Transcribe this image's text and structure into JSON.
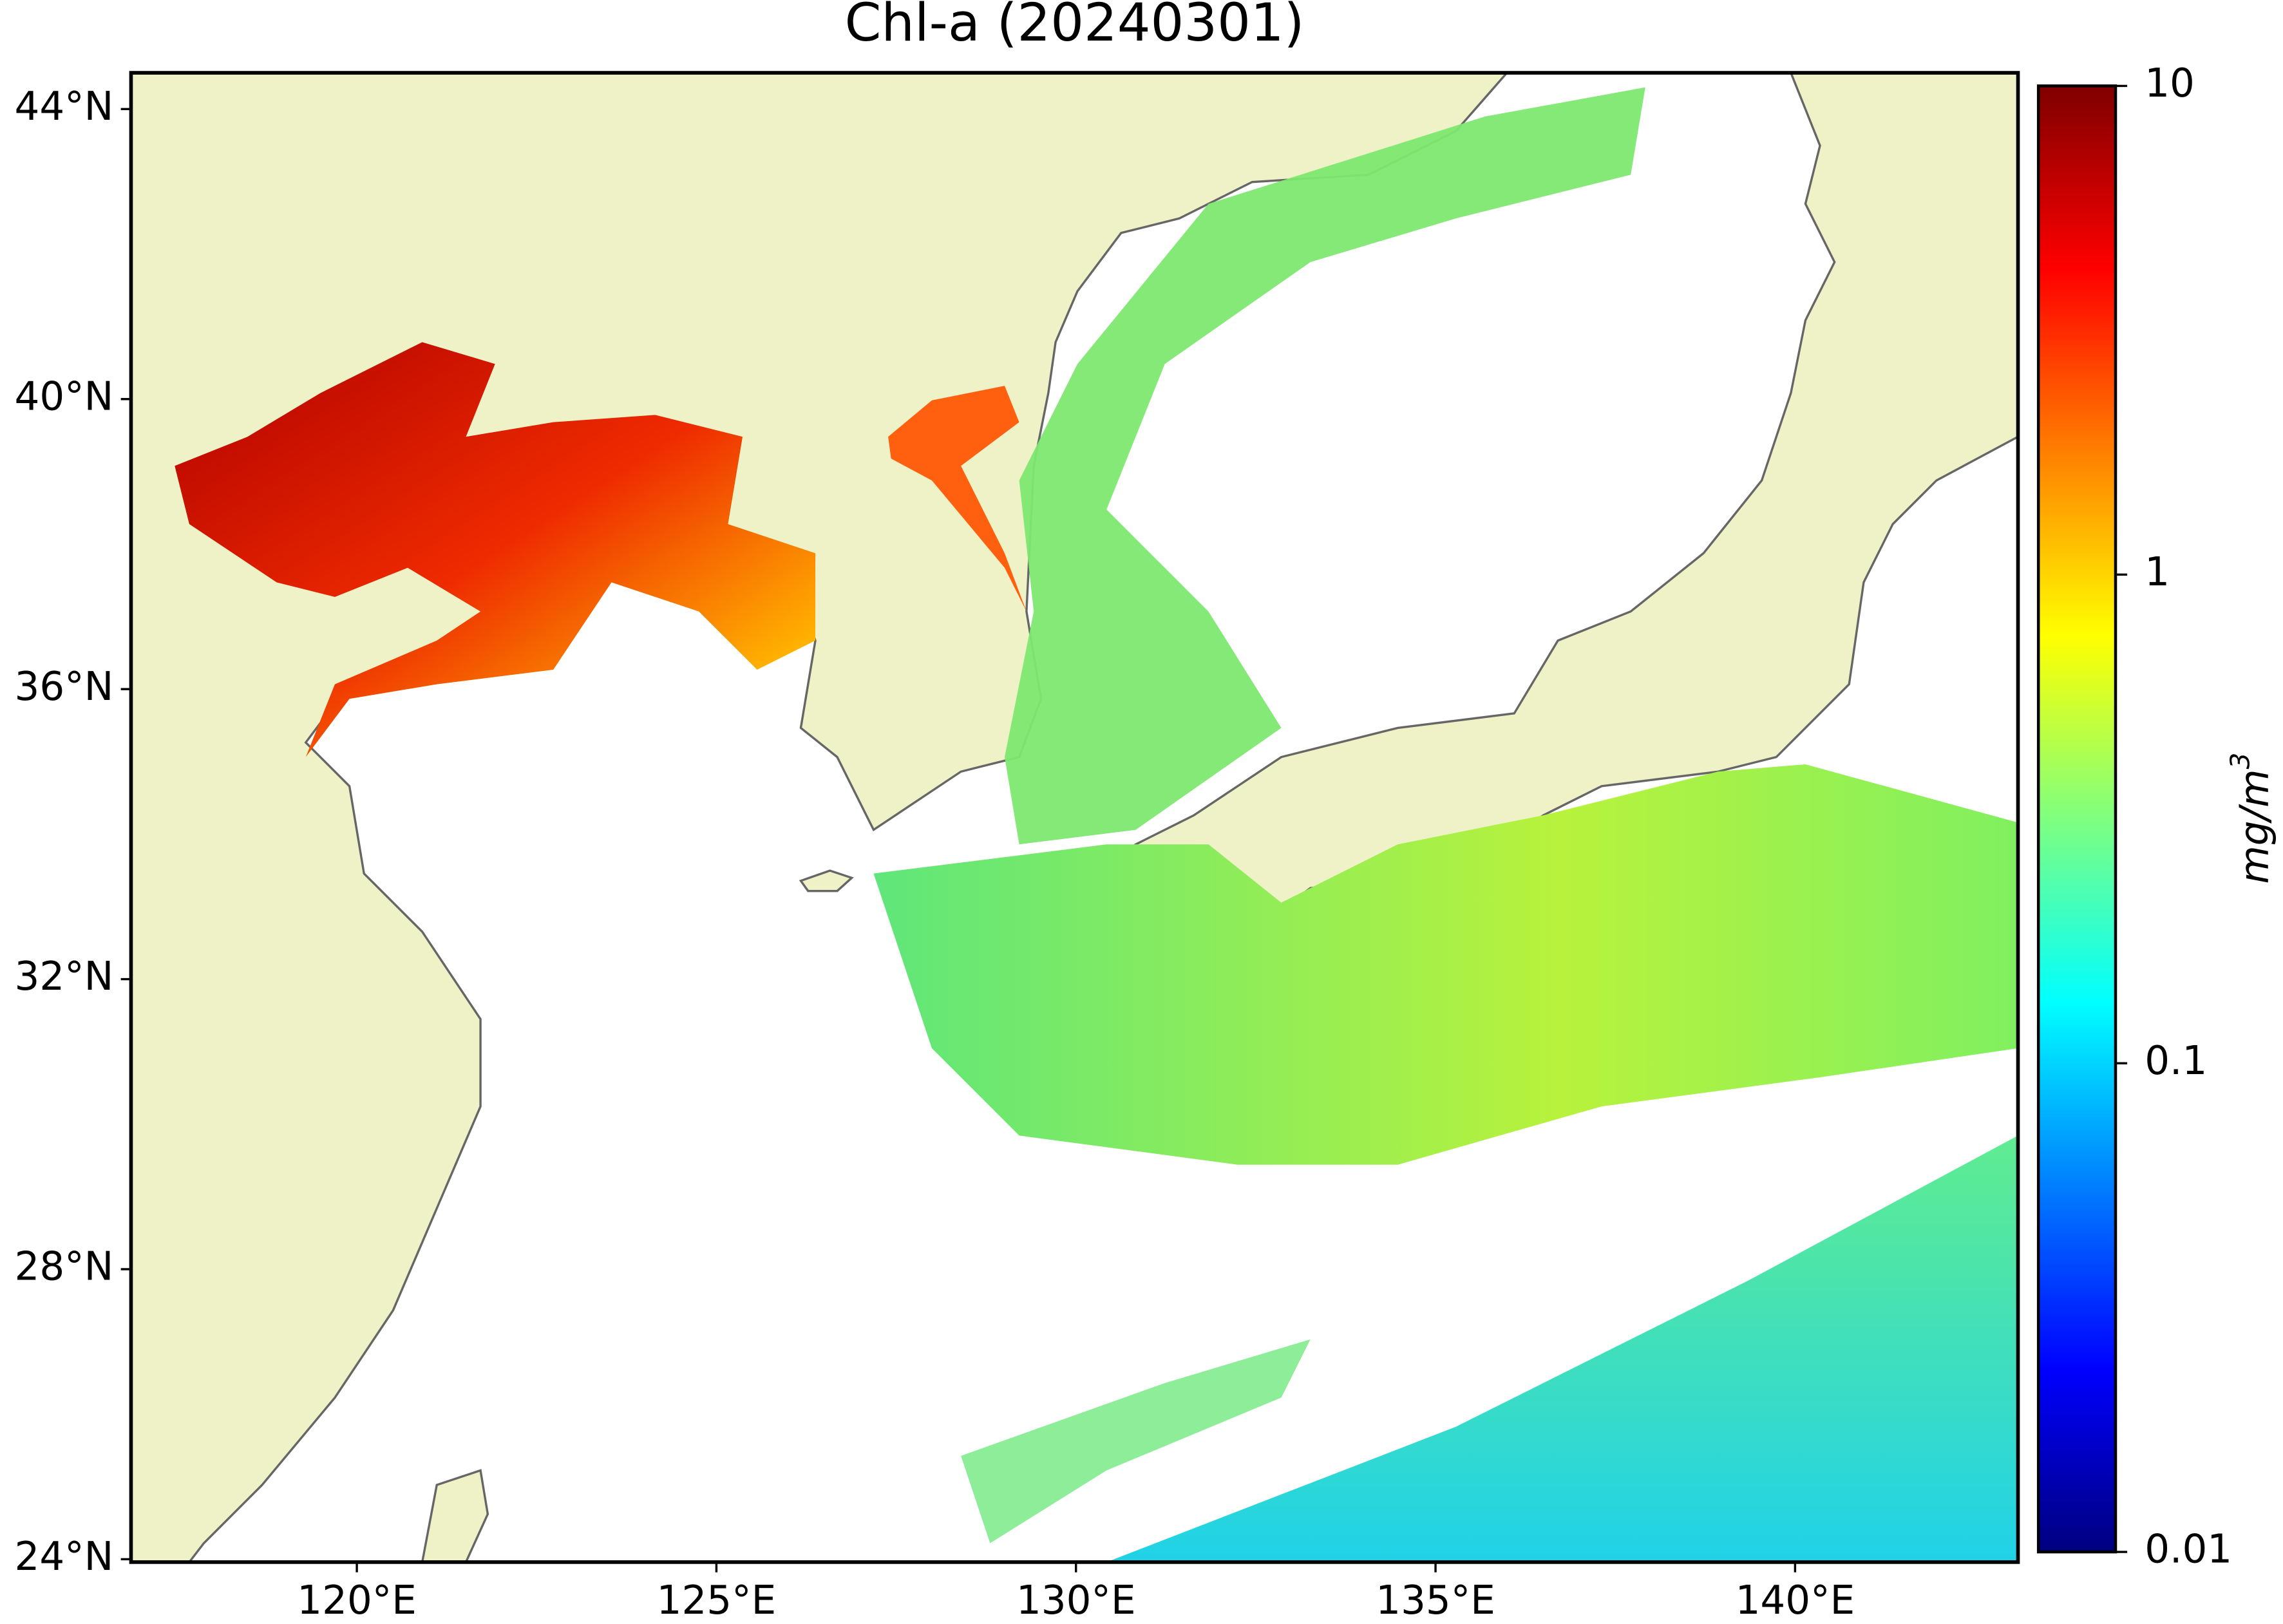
{
  "chart_data": {
    "type": "map",
    "title": "Chl-a (20240301)",
    "xlim": [
      116.86,
      143.1
    ],
    "ylim": [
      23.96,
      44.5
    ],
    "xticks": [
      {
        "value": 120,
        "label": "120°E"
      },
      {
        "value": 125,
        "label": "125°E"
      },
      {
        "value": 130,
        "label": "130°E"
      },
      {
        "value": 135,
        "label": "135°E"
      },
      {
        "value": 140,
        "label": "140°E"
      }
    ],
    "yticks": [
      {
        "value": 24,
        "label": "24°N"
      },
      {
        "value": 28,
        "label": "28°N"
      },
      {
        "value": 32,
        "label": "32°N"
      },
      {
        "value": 36,
        "label": "36°N"
      },
      {
        "value": 40,
        "label": "40°N"
      },
      {
        "value": 44,
        "label": "44°N"
      }
    ],
    "colorbar": {
      "label": "mg/m",
      "label_superscript": "3",
      "scale": "log",
      "lim": [
        0.01,
        10
      ],
      "ticks": [
        0.01,
        0.1,
        1,
        10
      ],
      "colormap": "jet"
    },
    "land_color": "#eff2c6"
  }
}
